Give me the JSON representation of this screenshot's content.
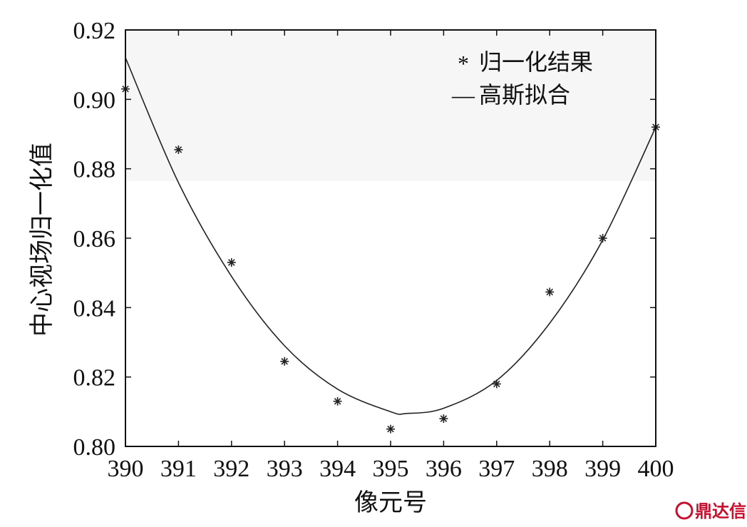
{
  "chart_data": {
    "type": "scatter",
    "xlabel": "像元号",
    "ylabel": "中心视场归一化值",
    "xlim": [
      390,
      400
    ],
    "ylim": [
      0.8,
      0.92
    ],
    "x_ticks": [
      "390",
      "391",
      "392",
      "393",
      "394",
      "395",
      "396",
      "397",
      "398",
      "399",
      "400"
    ],
    "y_ticks": [
      "0.80",
      "0.82",
      "0.84",
      "0.86",
      "0.88",
      "0.90",
      "0.92"
    ],
    "grid": false,
    "legend_position": "top-right",
    "series": [
      {
        "name": "归一化结果",
        "marker": "*",
        "color": "#222222",
        "points": [
          {
            "x": 390,
            "y": 0.903
          },
          {
            "x": 391,
            "y": 0.8855
          },
          {
            "x": 392,
            "y": 0.853
          },
          {
            "x": 393,
            "y": 0.8245
          },
          {
            "x": 394,
            "y": 0.813
          },
          {
            "x": 395,
            "y": 0.805
          },
          {
            "x": 396,
            "y": 0.808
          },
          {
            "x": 397,
            "y": 0.818
          },
          {
            "x": 398,
            "y": 0.8445
          },
          {
            "x": 399,
            "y": 0.86
          },
          {
            "x": 400,
            "y": 0.892
          }
        ]
      },
      {
        "name": "高斯拟合",
        "line": true,
        "color": "#222222",
        "points": [
          {
            "x": 390,
            "y": 0.912
          },
          {
            "x": 391,
            "y": 0.876
          },
          {
            "x": 392,
            "y": 0.849
          },
          {
            "x": 393,
            "y": 0.829
          },
          {
            "x": 394,
            "y": 0.8165
          },
          {
            "x": 395,
            "y": 0.81
          },
          {
            "x": 395.3,
            "y": 0.8095
          },
          {
            "x": 396,
            "y": 0.811
          },
          {
            "x": 397,
            "y": 0.819
          },
          {
            "x": 398,
            "y": 0.8355
          },
          {
            "x": 399,
            "y": 0.8595
          },
          {
            "x": 400,
            "y": 0.892
          }
        ]
      }
    ]
  },
  "legend": {
    "items": [
      {
        "symbol": "*",
        "label": "归一化结果"
      },
      {
        "symbol": "—",
        "label": "高斯拟合"
      }
    ]
  },
  "watermark": {
    "text": "鼎达信",
    "color": "#c8102e"
  }
}
